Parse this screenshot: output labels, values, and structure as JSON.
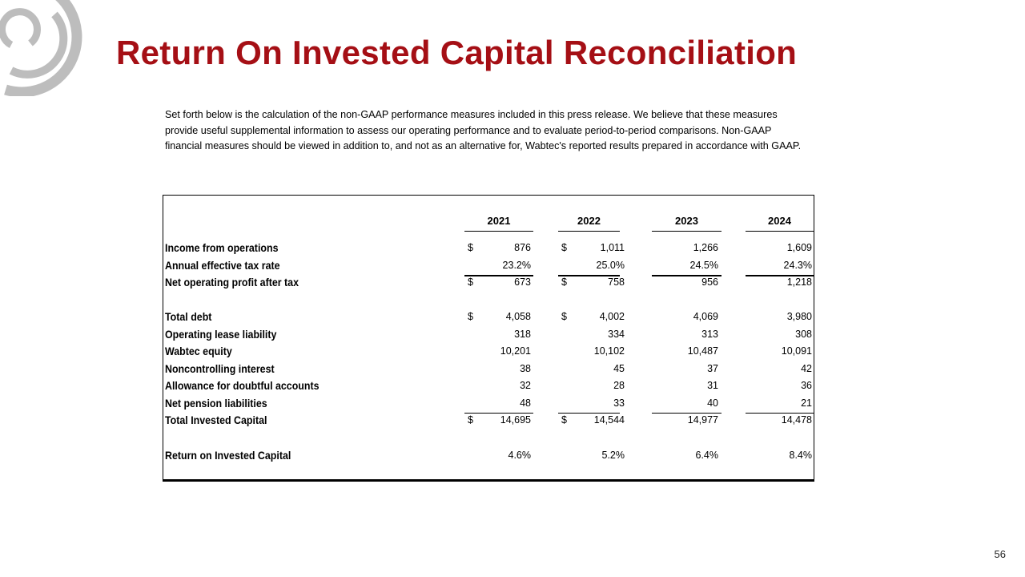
{
  "title": "Return On Invested Capital Reconciliation",
  "intro": "Set forth below is the calculation of the non-GAAP performance measures included in this press release.  We believe that these measures provide useful supplemental information to assess our operating performance and to evaluate period-to-period comparisons.  Non-GAAP financial measures should be viewed in addition to, and not as an alternative for, Wabtec's reported results prepared in accordance with GAAP.",
  "table": {
    "years": [
      "2021",
      "2022",
      "2023",
      "2024"
    ],
    "rows": [
      {
        "label": "Income from operations",
        "values": [
          "876",
          "1,011",
          "1,266",
          "1,609"
        ],
        "dollar": [
          "$",
          "$",
          "",
          ""
        ]
      },
      {
        "label": "Annual effective tax rate",
        "values": [
          "23.2%",
          "25.0%",
          "24.5%",
          "24.3%"
        ],
        "dollar": [
          "",
          "",
          "",
          ""
        ]
      },
      {
        "label": "Net operating profit after tax",
        "values": [
          "673",
          "758",
          "956",
          "1,218"
        ],
        "dollar": [
          "$",
          "$",
          "",
          ""
        ]
      },
      {
        "label": "Total debt",
        "values": [
          "4,058",
          "4,002",
          "4,069",
          "3,980"
        ],
        "dollar": [
          "$",
          "$",
          "",
          ""
        ]
      },
      {
        "label": "Operating lease liability",
        "values": [
          "318",
          "334",
          "313",
          "308"
        ],
        "dollar": [
          "",
          "",
          "",
          ""
        ]
      },
      {
        "label": "Wabtec equity",
        "values": [
          "10,201",
          "10,102",
          "10,487",
          "10,091"
        ],
        "dollar": [
          "",
          "",
          "",
          ""
        ]
      },
      {
        "label": "Noncontrolling interest",
        "values": [
          "38",
          "45",
          "37",
          "42"
        ],
        "dollar": [
          "",
          "",
          "",
          ""
        ]
      },
      {
        "label": "Allowance for doubtful accounts",
        "values": [
          "32",
          "28",
          "31",
          "36"
        ],
        "dollar": [
          "",
          "",
          "",
          ""
        ]
      },
      {
        "label": "Net pension liabilities",
        "values": [
          "48",
          "33",
          "40",
          "21"
        ],
        "dollar": [
          "",
          "",
          "",
          ""
        ]
      },
      {
        "label": "Total Invested Capital",
        "values": [
          "14,695",
          "14,544",
          "14,977",
          "14,478"
        ],
        "dollar": [
          "$",
          "$",
          "",
          ""
        ]
      },
      {
        "label": "Return on Invested Capital",
        "values": [
          "4.6%",
          "5.2%",
          "6.4%",
          "8.4%"
        ],
        "dollar": [
          "",
          "",
          "",
          ""
        ]
      }
    ]
  },
  "page_number": "56",
  "colors": {
    "title": "#a50f15",
    "logo": "#bdbdbd"
  }
}
